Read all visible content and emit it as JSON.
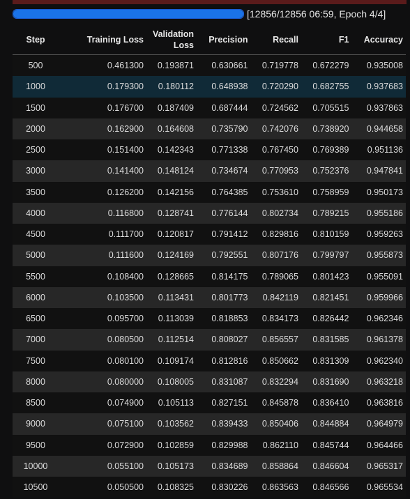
{
  "progress": {
    "fraction": 1.0,
    "text": "[12856/12856 06:59, Epoch 4/4]"
  },
  "table": {
    "headers": [
      "Step",
      "Training Loss",
      "Validation Loss",
      "Precision",
      "Recall",
      "F1",
      "Accuracy"
    ],
    "rows": [
      [
        "500",
        "0.461300",
        "0.193871",
        "0.630661",
        "0.719778",
        "0.672279",
        "0.935008"
      ],
      [
        "1000",
        "0.179300",
        "0.180112",
        "0.648938",
        "0.720290",
        "0.682755",
        "0.937683"
      ],
      [
        "1500",
        "0.176700",
        "0.187409",
        "0.687444",
        "0.724562",
        "0.705515",
        "0.937863"
      ],
      [
        "2000",
        "0.162900",
        "0.164608",
        "0.735790",
        "0.742076",
        "0.738920",
        "0.944658"
      ],
      [
        "2500",
        "0.151400",
        "0.142343",
        "0.771338",
        "0.767450",
        "0.769389",
        "0.951136"
      ],
      [
        "3000",
        "0.141400",
        "0.148124",
        "0.734674",
        "0.770953",
        "0.752376",
        "0.947841"
      ],
      [
        "3500",
        "0.126200",
        "0.142156",
        "0.764385",
        "0.753610",
        "0.758959",
        "0.950173"
      ],
      [
        "4000",
        "0.116800",
        "0.128741",
        "0.776144",
        "0.802734",
        "0.789215",
        "0.955186"
      ],
      [
        "4500",
        "0.111700",
        "0.120817",
        "0.791412",
        "0.829816",
        "0.810159",
        "0.959263"
      ],
      [
        "5000",
        "0.111600",
        "0.124169",
        "0.792551",
        "0.807176",
        "0.799797",
        "0.955873"
      ],
      [
        "5500",
        "0.108400",
        "0.128665",
        "0.814175",
        "0.789065",
        "0.801423",
        "0.955091"
      ],
      [
        "6000",
        "0.103500",
        "0.113431",
        "0.801773",
        "0.842119",
        "0.821451",
        "0.959966"
      ],
      [
        "6500",
        "0.095700",
        "0.113039",
        "0.818853",
        "0.834173",
        "0.826442",
        "0.962346"
      ],
      [
        "7000",
        "0.080500",
        "0.112514",
        "0.808027",
        "0.856557",
        "0.831585",
        "0.961378"
      ],
      [
        "7500",
        "0.080100",
        "0.109174",
        "0.812816",
        "0.850662",
        "0.831309",
        "0.962340"
      ],
      [
        "8000",
        "0.080000",
        "0.108005",
        "0.831087",
        "0.832294",
        "0.831690",
        "0.963218"
      ],
      [
        "8500",
        "0.074900",
        "0.105113",
        "0.827151",
        "0.845878",
        "0.836410",
        "0.963816"
      ],
      [
        "9000",
        "0.075100",
        "0.103562",
        "0.839433",
        "0.850406",
        "0.844884",
        "0.964979"
      ],
      [
        "9500",
        "0.072900",
        "0.102859",
        "0.829988",
        "0.862110",
        "0.845744",
        "0.964466"
      ],
      [
        "10000",
        "0.055100",
        "0.105173",
        "0.834689",
        "0.858864",
        "0.846604",
        "0.965317"
      ],
      [
        "10500",
        "0.050500",
        "0.108325",
        "0.830226",
        "0.863563",
        "0.846566",
        "0.965534"
      ]
    ],
    "highlighted_row": 1
  },
  "colors": {
    "background": "#0f0f10",
    "progress_fill": "#1a73e8",
    "row_alt": "#272727",
    "row_highlight": "#102a37",
    "top_strip": "#5a1b1b"
  }
}
